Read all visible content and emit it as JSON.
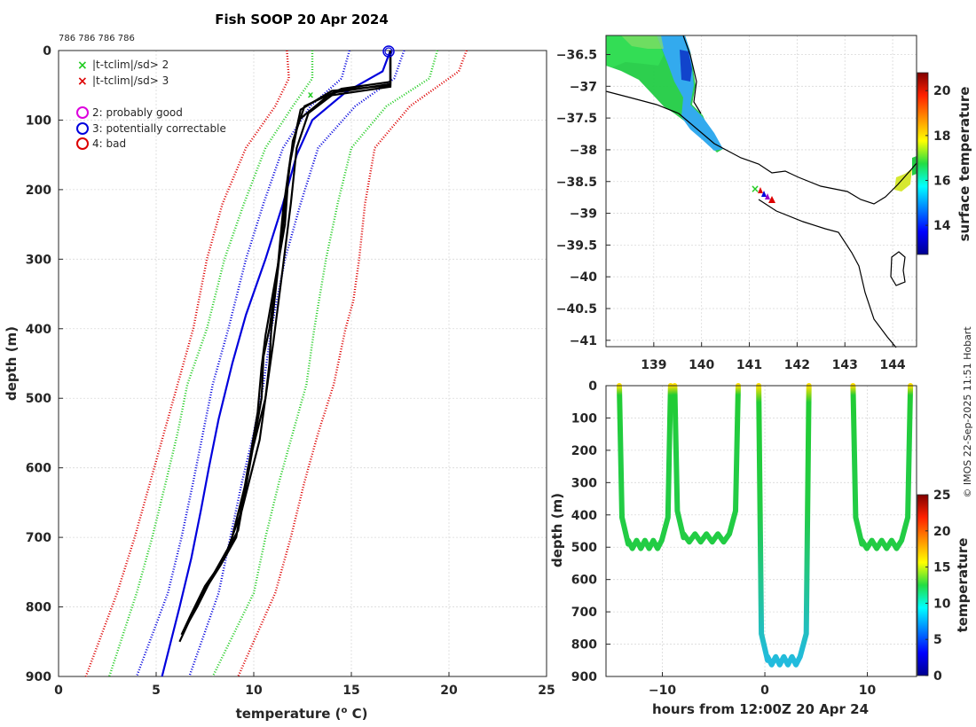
{
  "chart_data": [
    {
      "type": "line",
      "panel": "profile",
      "title": "Fish SOOP 20 Apr 2024",
      "header_ids": "786 786 786 786",
      "xlabel": "temperature (",
      "xlabel_sup": "o",
      "xlabel_unit": " C)",
      "ylabel": "depth (m)",
      "xlim": [
        0,
        25
      ],
      "ylim": [
        0,
        900
      ],
      "xticks": [
        0,
        5,
        10,
        15,
        20,
        25
      ],
      "yticks": [
        0,
        100,
        200,
        300,
        400,
        500,
        600,
        700,
        800,
        900
      ],
      "legend": [
        {
          "marker": "x",
          "color": "#22cc22",
          "label": "|t-tclim|/sd> 2"
        },
        {
          "marker": "x",
          "color": "#dd0000",
          "label": "|t-tclim|/sd> 3"
        },
        {
          "marker": "o",
          "color": "#dd00dd",
          "label": "2: probably good"
        },
        {
          "marker": "o",
          "color": "#0000dd",
          "label": "3: potentially correctable"
        },
        {
          "marker": "o",
          "color": "#dd0000",
          "label": "4: bad"
        }
      ],
      "series": [
        {
          "name": "climatology -3sd",
          "color": "#dd0000",
          "style": "dotted",
          "points": [
            [
              11.7,
              0
            ],
            [
              11.8,
              40
            ],
            [
              11.1,
              80
            ],
            [
              9.6,
              140
            ],
            [
              8.4,
              220
            ],
            [
              7.6,
              300
            ],
            [
              6.9,
              400
            ],
            [
              6.1,
              480
            ],
            [
              5.4,
              550
            ],
            [
              4.7,
              620
            ],
            [
              3.9,
              700
            ],
            [
              3.0,
              780
            ],
            [
              1.4,
              900
            ]
          ]
        },
        {
          "name": "climatology -2sd",
          "color": "#22cc22",
          "style": "dotted",
          "points": [
            [
              13.0,
              0
            ],
            [
              13.0,
              40
            ],
            [
              12.0,
              80
            ],
            [
              10.6,
              140
            ],
            [
              9.5,
              220
            ],
            [
              8.5,
              300
            ],
            [
              7.6,
              400
            ],
            [
              6.6,
              480
            ],
            [
              6.1,
              550
            ],
            [
              5.5,
              620
            ],
            [
              4.8,
              700
            ],
            [
              4.0,
              780
            ],
            [
              2.6,
              900
            ]
          ]
        },
        {
          "name": "climatology -1sd",
          "color": "#0000dd",
          "style": "dotted",
          "points": [
            [
              14.9,
              0
            ],
            [
              14.5,
              40
            ],
            [
              12.9,
              80
            ],
            [
              11.5,
              140
            ],
            [
              10.5,
              220
            ],
            [
              9.6,
              300
            ],
            [
              8.7,
              400
            ],
            [
              7.9,
              480
            ],
            [
              7.4,
              550
            ],
            [
              6.9,
              620
            ],
            [
              6.3,
              700
            ],
            [
              5.6,
              780
            ],
            [
              4.0,
              900
            ]
          ]
        },
        {
          "name": "climatology mean",
          "color": "#0000dd",
          "style": "solid",
          "points": [
            [
              17.0,
              0
            ],
            [
              16.6,
              30
            ],
            [
              14.7,
              60
            ],
            [
              13.0,
              100
            ],
            [
              12.2,
              150
            ],
            [
              11.5,
              220
            ],
            [
              10.6,
              300
            ],
            [
              9.6,
              380
            ],
            [
              8.9,
              450
            ],
            [
              8.2,
              530
            ],
            [
              7.7,
              600
            ],
            [
              7.3,
              660
            ],
            [
              6.8,
              730
            ],
            [
              6.2,
              800
            ],
            [
              5.3,
              900
            ]
          ]
        },
        {
          "name": "climatology +1sd",
          "color": "#0000dd",
          "style": "dotted",
          "points": [
            [
              17.7,
              0
            ],
            [
              17.2,
              40
            ],
            [
              15.2,
              80
            ],
            [
              13.3,
              140
            ],
            [
              12.4,
              220
            ],
            [
              11.6,
              300
            ],
            [
              10.9,
              400
            ],
            [
              10.5,
              480
            ],
            [
              10.0,
              550
            ],
            [
              9.4,
              620
            ],
            [
              8.8,
              700
            ],
            [
              8.2,
              780
            ],
            [
              6.7,
              900
            ]
          ]
        },
        {
          "name": "climatology +2sd",
          "color": "#22cc22",
          "style": "dotted",
          "points": [
            [
              19.4,
              0
            ],
            [
              19.0,
              40
            ],
            [
              16.8,
              80
            ],
            [
              15.0,
              140
            ],
            [
              14.3,
              220
            ],
            [
              13.7,
              300
            ],
            [
              13.1,
              400
            ],
            [
              12.7,
              480
            ],
            [
              12.0,
              550
            ],
            [
              11.3,
              620
            ],
            [
              10.6,
              700
            ],
            [
              10.0,
              780
            ],
            [
              7.9,
              900
            ]
          ]
        },
        {
          "name": "climatology +3sd",
          "color": "#dd0000",
          "style": "dotted",
          "points": [
            [
              20.9,
              0
            ],
            [
              20.5,
              30
            ],
            [
              18.0,
              80
            ],
            [
              16.2,
              140
            ],
            [
              15.7,
              220
            ],
            [
              15.4,
              300
            ],
            [
              15.1,
              360
            ],
            [
              14.7,
              400
            ],
            [
              14.1,
              480
            ],
            [
              13.3,
              550
            ],
            [
              12.6,
              620
            ],
            [
              11.9,
              700
            ],
            [
              11.1,
              780
            ],
            [
              9.2,
              900
            ]
          ]
        },
        {
          "name": "XBT drop 1",
          "color": "#000000",
          "style": "solid",
          "points": [
            [
              17.0,
              0
            ],
            [
              17.0,
              45
            ],
            [
              14.5,
              55
            ],
            [
              12.6,
              80
            ],
            [
              12.0,
              130
            ],
            [
              11.7,
              200
            ],
            [
              11.3,
              300
            ],
            [
              10.9,
              400
            ],
            [
              10.8,
              450
            ],
            [
              10.6,
              500
            ],
            [
              9.7,
              600
            ],
            [
              9.1,
              700
            ],
            [
              8.3,
              740
            ],
            [
              7.4,
              780
            ],
            [
              6.7,
              820
            ],
            [
              6.2,
              850
            ]
          ]
        },
        {
          "name": "XBT drop 2",
          "color": "#000000",
          "style": "solid",
          "points": [
            [
              17.0,
              0
            ],
            [
              17.0,
              48
            ],
            [
              14.2,
              60
            ],
            [
              12.8,
              90
            ],
            [
              12.2,
              140
            ],
            [
              11.9,
              220
            ],
            [
              11.5,
              310
            ],
            [
              11.0,
              420
            ],
            [
              10.7,
              480
            ],
            [
              10.3,
              560
            ],
            [
              9.4,
              660
            ],
            [
              8.5,
              730
            ],
            [
              7.5,
              770
            ],
            [
              6.8,
              810
            ],
            [
              6.3,
              840
            ]
          ]
        },
        {
          "name": "XBT drop 3",
          "color": "#000000",
          "style": "solid",
          "points": [
            [
              17.0,
              0
            ],
            [
              17.0,
              50
            ],
            [
              14.0,
              58
            ],
            [
              12.4,
              85
            ],
            [
              11.9,
              150
            ],
            [
              11.5,
              230
            ],
            [
              11.2,
              320
            ],
            [
              10.8,
              400
            ],
            [
              10.5,
              440
            ],
            [
              10.4,
              500
            ],
            [
              9.9,
              580
            ],
            [
              9.2,
              690
            ],
            [
              8.0,
              750
            ],
            [
              7.1,
              800
            ],
            [
              6.5,
              830
            ]
          ]
        },
        {
          "name": "XBT drop 4",
          "color": "#000000",
          "style": "solid",
          "points": [
            [
              17.0,
              0
            ],
            [
              17.0,
              52
            ],
            [
              13.8,
              65
            ],
            [
              12.3,
              100
            ],
            [
              11.8,
              170
            ],
            [
              11.6,
              250
            ],
            [
              11.1,
              330
            ],
            [
              10.6,
              410
            ],
            [
              10.4,
              455
            ],
            [
              10.2,
              520
            ],
            [
              9.6,
              620
            ],
            [
              8.8,
              710
            ],
            [
              7.8,
              760
            ],
            [
              6.9,
              805
            ],
            [
              6.4,
              835
            ]
          ]
        }
      ],
      "flagged_points": [
        {
          "t": 13.0,
          "depth": 70,
          "flag": "|t-tclim|/sd> 2"
        },
        {
          "t": 17.0,
          "depth": 2,
          "flag": "3: potentially correctable"
        }
      ]
    },
    {
      "type": "scatter",
      "panel": "map",
      "xlim": [
        138,
        144.5
      ],
      "ylim": [
        -41.1,
        -36.2
      ],
      "xticks": [
        139,
        140,
        141,
        142,
        143,
        144
      ],
      "yticks": [
        -36.5,
        -37,
        -37.5,
        -38,
        -38.5,
        -39,
        -39.5,
        -40,
        -40.5,
        -41
      ],
      "colorbar_label": "surface temperature",
      "colorbar_ticks": [
        14,
        16,
        18,
        20
      ],
      "colorbar_range": [
        12.7,
        20.8
      ],
      "points": [
        {
          "lon": 141.1,
          "lat": -38.6,
          "marker": "x",
          "color": "#22cc22"
        },
        {
          "lon": 141.2,
          "lat": -38.65,
          "marker": "triangle",
          "color": "#dd0000"
        },
        {
          "lon": 141.3,
          "lat": -38.72,
          "marker": "triangle",
          "color": "#0000dd"
        },
        {
          "lon": 141.4,
          "lat": -38.78,
          "marker": "triangle",
          "color": "#dd0000"
        }
      ]
    },
    {
      "type": "scatter",
      "panel": "time-depth",
      "xlabel": "hours from 12:00Z 20 Apr 24",
      "ylabel": "depth (m)",
      "xlim": [
        -15.5,
        14.8
      ],
      "ylim": [
        0,
        900
      ],
      "xticks": [
        -10,
        0,
        10
      ],
      "yticks": [
        0,
        100,
        200,
        300,
        400,
        500,
        600,
        700,
        800,
        900
      ],
      "colorbar_label": "temperature",
      "colorbar_ticks": [
        0,
        5,
        10,
        15,
        20,
        25
      ],
      "colorbar_range": [
        0,
        25
      ],
      "casts": [
        {
          "x_down": -14.2,
          "x_up": -9.2,
          "max_depth": 490
        },
        {
          "x_down": -8.8,
          "x_up": -2.6,
          "max_depth": 470
        },
        {
          "x_down": -0.6,
          "x_up": 4.3,
          "max_depth": 850
        },
        {
          "x_down": 8.6,
          "x_up": 14.2,
          "max_depth": 490
        }
      ]
    }
  ],
  "credit": "© IMOS 22-Sep-2025 11:51 Hobart"
}
